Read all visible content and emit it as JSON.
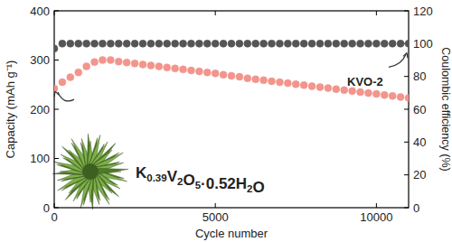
{
  "chart_data": {
    "type": "scatter",
    "x_label": "Cycle number",
    "y_label": "Capacity (mAh g⁻¹)",
    "y2_label": "Coulombic efficiency (%)",
    "annotations": [
      "KVO-2",
      "K0.39V2O5·0.52H2O"
    ],
    "x": [
      0,
      250,
      500,
      750,
      1000,
      1250,
      1500,
      1750,
      2000,
      2250,
      2500,
      2750,
      3000,
      3250,
      3500,
      3750,
      4000,
      4250,
      4500,
      4750,
      5000,
      5250,
      5500,
      5750,
      6000,
      6250,
      6500,
      6750,
      7000,
      7250,
      7500,
      7750,
      8000,
      8250,
      8500,
      8750,
      9000,
      9250,
      9500,
      9750,
      10000,
      10250,
      10500,
      10750,
      11000
    ],
    "series": [
      {
        "name": "Capacity",
        "color": "#f2958c",
        "marker": "circle",
        "values": [
          242,
          255,
          265,
          275,
          287,
          296,
          300,
          300,
          297,
          295,
          293,
          291,
          289,
          287,
          285,
          283,
          281,
          279,
          277,
          275,
          273,
          270,
          268,
          266,
          263,
          261,
          259,
          257,
          255,
          253,
          251,
          249,
          247,
          245,
          243,
          241,
          239,
          237,
          235,
          233,
          231,
          229,
          227,
          225,
          223
        ]
      },
      {
        "name": "Coulombic efficiency",
        "color": "#555555",
        "marker": "circle",
        "axis": "y2",
        "values": [
          97,
          100,
          100,
          100,
          100,
          100,
          100,
          100,
          100,
          100,
          100,
          100,
          100,
          100,
          100,
          100,
          100,
          100,
          100,
          100,
          100,
          100,
          100,
          100,
          100,
          100,
          100,
          100,
          100,
          100,
          100,
          100,
          100,
          100,
          100,
          100,
          100,
          100,
          100,
          100,
          100,
          100,
          100,
          100,
          100
        ]
      }
    ],
    "xlim": [
      0,
      11000
    ],
    "xticks": [
      0,
      5000,
      10000
    ],
    "ylim": [
      0,
      400
    ],
    "yticks": [
      0,
      100,
      200,
      300,
      400
    ],
    "y2lim": [
      0,
      120
    ],
    "y2ticks": [
      0,
      20,
      40,
      60,
      80,
      100,
      120
    ],
    "grid": false
  }
}
